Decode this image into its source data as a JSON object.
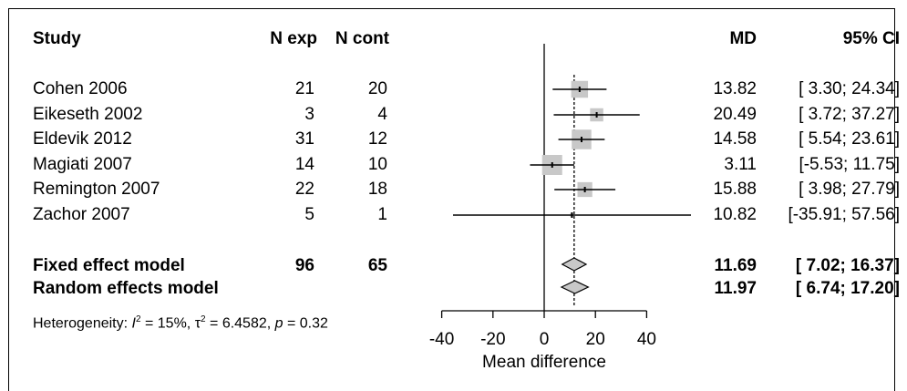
{
  "header": {
    "study": "Study",
    "n_exp": "N exp",
    "n_cont": "N cont",
    "md": "MD",
    "ci": "95% CI"
  },
  "rows": [
    {
      "study": "Cohen 2006",
      "n_exp": "21",
      "n_cont": "20",
      "md_text": "13.82",
      "ci_text": "[ 3.30; 24.34]"
    },
    {
      "study": "Eikeseth 2002",
      "n_exp": "3",
      "n_cont": "4",
      "md_text": "20.49",
      "ci_text": "[ 3.72; 37.27]"
    },
    {
      "study": "Eldevik 2012",
      "n_exp": "31",
      "n_cont": "12",
      "md_text": "14.58",
      "ci_text": "[ 5.54; 23.61]"
    },
    {
      "study": "Magiati 2007",
      "n_exp": "14",
      "n_cont": "10",
      "md_text": "3.11",
      "ci_text": "[-5.53; 11.75]"
    },
    {
      "study": "Remington 2007",
      "n_exp": "22",
      "n_cont": "18",
      "md_text": "15.88",
      "ci_text": "[ 3.98; 27.79]"
    },
    {
      "study": "Zachor 2007",
      "n_exp": "5",
      "n_cont": "1",
      "md_text": "10.82",
      "ci_text": "[-35.91; 57.56]"
    }
  ],
  "fixed": {
    "label": "Fixed effect model",
    "n_exp": "96",
    "n_cont": "65",
    "md_text": "11.69",
    "ci_text": "[ 7.02; 16.37]"
  },
  "random": {
    "label": "Random effects model",
    "md_text": "11.97",
    "ci_text": "[ 6.74; 17.20]"
  },
  "heterogeneity": {
    "i2": "15%",
    "tau2": "6.4582",
    "p": "0.32"
  },
  "chart_data": {
    "type": "forest",
    "xlabel": "Mean difference",
    "xlim": [
      -40,
      40
    ],
    "xticks": [
      -40,
      -20,
      0,
      20,
      40
    ],
    "null_value": 0,
    "studies": [
      {
        "name": "Cohen 2006",
        "md": 13.82,
        "lower": 3.3,
        "upper": 24.34,
        "weight": 0.155
      },
      {
        "name": "Eikeseth 2002",
        "md": 20.49,
        "lower": 3.72,
        "upper": 37.27,
        "weight": 0.095
      },
      {
        "name": "Eldevik 2012",
        "md": 14.58,
        "lower": 5.54,
        "upper": 23.61,
        "weight": 0.21
      },
      {
        "name": "Magiati 2007",
        "md": 3.11,
        "lower": -5.53,
        "upper": 11.75,
        "weight": 0.22
      },
      {
        "name": "Remington 2007",
        "md": 15.88,
        "lower": 3.98,
        "upper": 27.79,
        "weight": 0.12
      },
      {
        "name": "Zachor 2007",
        "md": 10.82,
        "lower": -35.91,
        "upper": 57.56,
        "weight": 0.006
      }
    ],
    "fixed": {
      "md": 11.69,
      "lower": 7.02,
      "upper": 16.37
    },
    "random": {
      "md": 11.97,
      "lower": 6.74,
      "upper": 17.2
    }
  }
}
